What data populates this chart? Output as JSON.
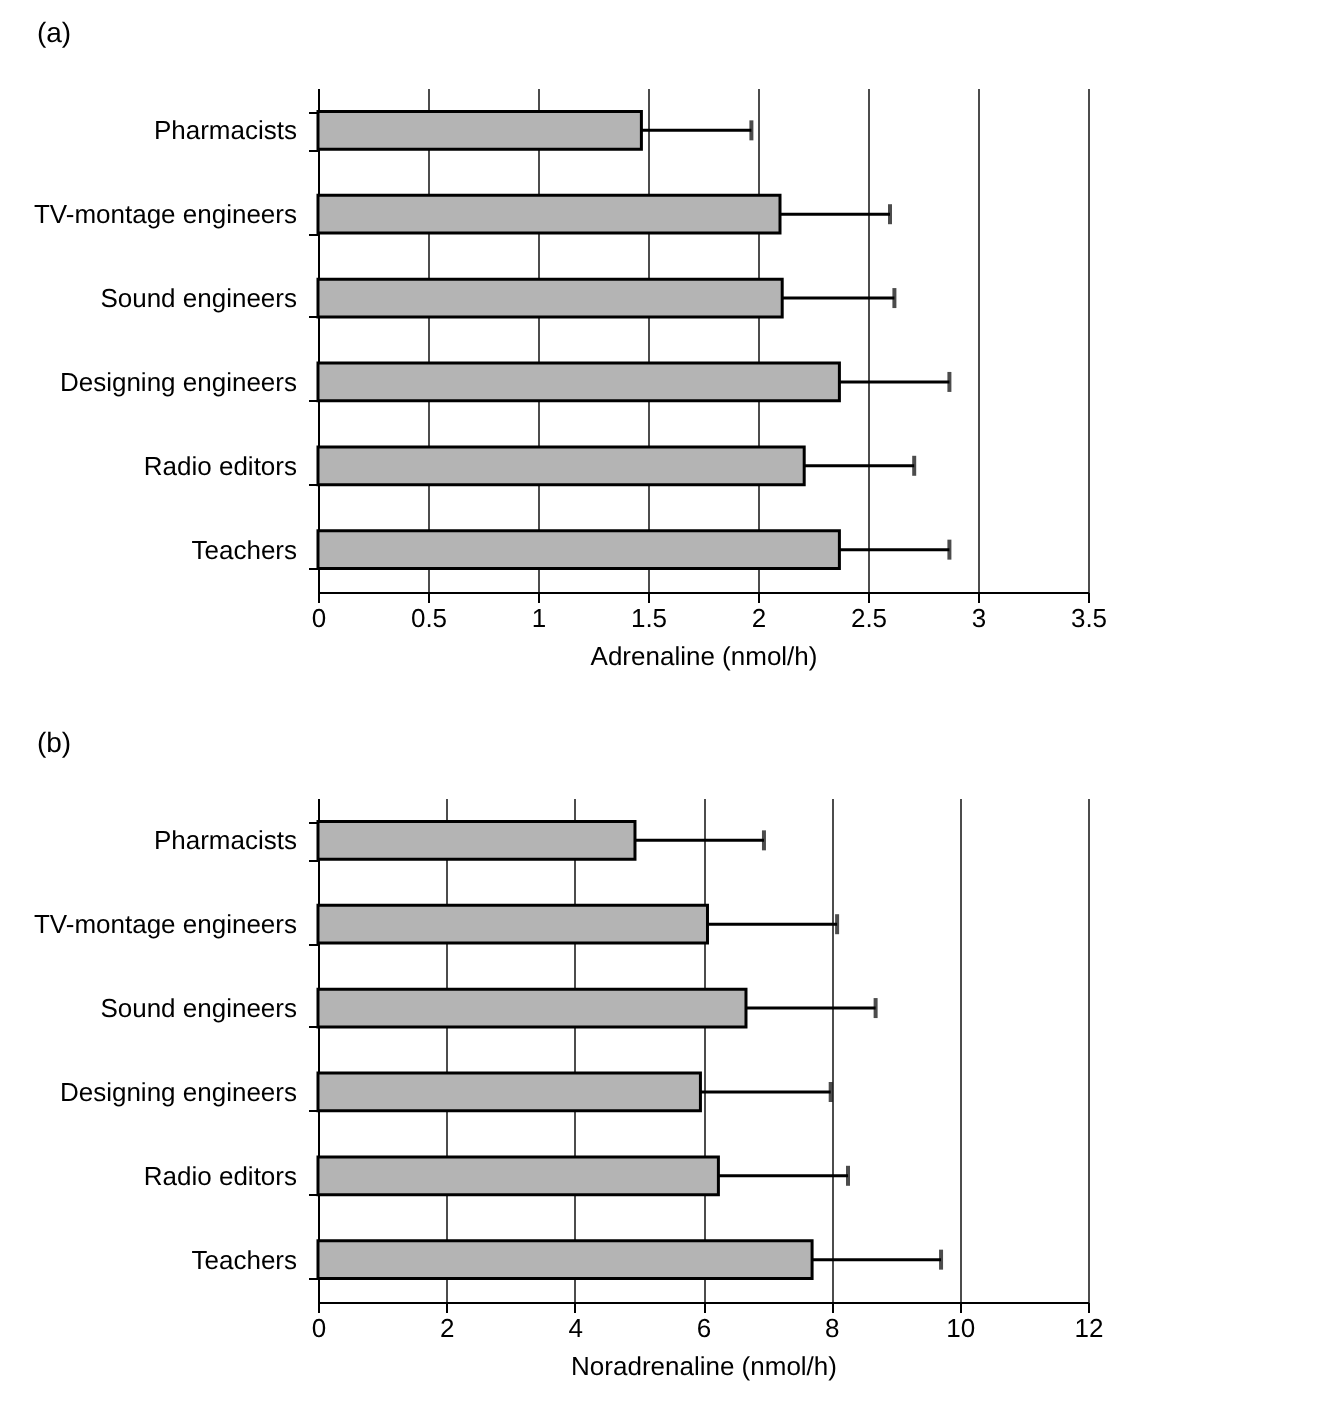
{
  "chart_data": [
    {
      "type": "bar",
      "orientation": "horizontal",
      "title": "(a)",
      "xlabel": "Adrenaline (nmol/h)",
      "categories": [
        "Pharmacists",
        "TV-montage engineers",
        "Sound engineers",
        "Designing engineers",
        "Radio editors",
        "Teachers"
      ],
      "series": [
        {
          "color": "#b4b4b4",
          "values": [
            1.47,
            2.1,
            2.11,
            2.37,
            2.21,
            2.37
          ],
          "errors": [
            [
              1.47,
              1.97
            ],
            [
              2.1,
              2.6
            ],
            [
              2.11,
              2.62
            ],
            [
              2.37,
              2.87
            ],
            [
              2.21,
              2.71
            ],
            [
              2.37,
              2.87
            ]
          ]
        }
      ],
      "xlim": [
        0,
        3.5
      ],
      "xticks": [
        0,
        0.5,
        1,
        1.5,
        2,
        2.5,
        3,
        3.5
      ],
      "grid": "x",
      "legend": false
    },
    {
      "type": "bar",
      "orientation": "horizontal",
      "title": "(b)",
      "xlabel": "Noradrenaline (nmol/h)",
      "categories": [
        "Pharmacists",
        "TV-montage engineers",
        "Sound engineers",
        "Designing engineers",
        "Radio editors",
        "Teachers"
      ],
      "series": [
        {
          "color": "#b4b4b4",
          "values": [
            4.94,
            6.07,
            6.67,
            5.96,
            6.24,
            7.7
          ],
          "errors": [
            [
              4.94,
              6.95
            ],
            [
              6.07,
              8.09
            ],
            [
              6.67,
              8.69
            ],
            [
              5.96,
              7.99
            ],
            [
              6.24,
              8.26
            ],
            [
              7.7,
              9.71
            ]
          ]
        }
      ],
      "xlim": [
        0,
        12
      ],
      "xticks": [
        0,
        2,
        4,
        6,
        8,
        10,
        12
      ],
      "grid": "x",
      "legend": false
    }
  ]
}
